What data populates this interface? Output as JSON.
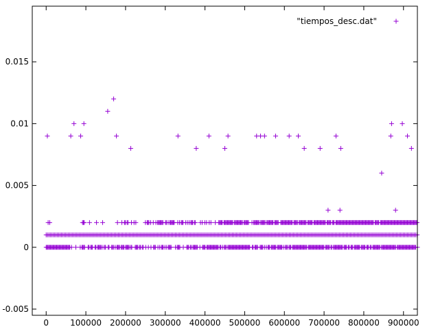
{
  "chart_data": {
    "type": "scatter",
    "title": "",
    "xlabel": "",
    "ylabel": "",
    "xlim": [
      -35000,
      935000
    ],
    "ylim": [
      -0.0055,
      0.0195
    ],
    "x_ticks": [
      0,
      100000,
      200000,
      300000,
      400000,
      500000,
      600000,
      700000,
      800000,
      900000
    ],
    "x_tick_labels": [
      "0",
      "100000",
      "200000",
      "300000",
      "400000",
      "500000",
      "600000",
      "700000",
      "800000",
      "900000"
    ],
    "y_ticks": [
      -0.005,
      0,
      0.005,
      0.01,
      0.015
    ],
    "y_tick_labels": [
      "-0.005",
      "0",
      "0.005",
      "0.01",
      "0.015"
    ],
    "grid": false,
    "legend_position": "top-right",
    "marker": "+",
    "series": [
      {
        "name": "\"tiempos_desc.dat\"",
        "color": "#9400d3",
        "points_sparse": [
          [
            3000,
            0.009
          ],
          [
            5000,
            0.002
          ],
          [
            9000,
            0.002
          ],
          [
            62000,
            0.009
          ],
          [
            70000,
            0.01
          ],
          [
            87000,
            0.009
          ],
          [
            95000,
            0.01
          ],
          [
            155000,
            0.011
          ],
          [
            170000,
            0.012
          ],
          [
            177000,
            0.009
          ],
          [
            213000,
            0.008
          ],
          [
            332000,
            0.009
          ],
          [
            378000,
            0.008
          ],
          [
            410000,
            0.009
          ],
          [
            450000,
            0.008
          ],
          [
            458000,
            0.009
          ],
          [
            530000,
            0.009
          ],
          [
            540000,
            0.009
          ],
          [
            550000,
            0.009
          ],
          [
            578000,
            0.009
          ],
          [
            612000,
            0.009
          ],
          [
            635000,
            0.009
          ],
          [
            650000,
            0.008
          ],
          [
            690000,
            0.008
          ],
          [
            710000,
            0.003
          ],
          [
            730000,
            0.009
          ],
          [
            740000,
            0.003
          ],
          [
            742000,
            0.008
          ],
          [
            845000,
            0.006
          ],
          [
            868000,
            0.009
          ],
          [
            870000,
            0.01
          ],
          [
            880000,
            0.003
          ],
          [
            897000,
            0.01
          ],
          [
            910000,
            0.009
          ],
          [
            920000,
            0.008
          ]
        ],
        "band_at_0": {
          "y": 0,
          "x_range": [
            0,
            935000
          ],
          "note_density": "sparse_then_dense"
        },
        "band_at_001": {
          "y": 0.001,
          "x_range": [
            0,
            935000
          ],
          "note_density": "continuous"
        },
        "band_at_002": {
          "y": 0.002,
          "x_range": [
            85000,
            935000
          ],
          "note_density": "sparse_then_dense"
        }
      }
    ]
  },
  "legend": {
    "label": "\"tiempos_desc.dat\"",
    "color": "#9400d3"
  }
}
